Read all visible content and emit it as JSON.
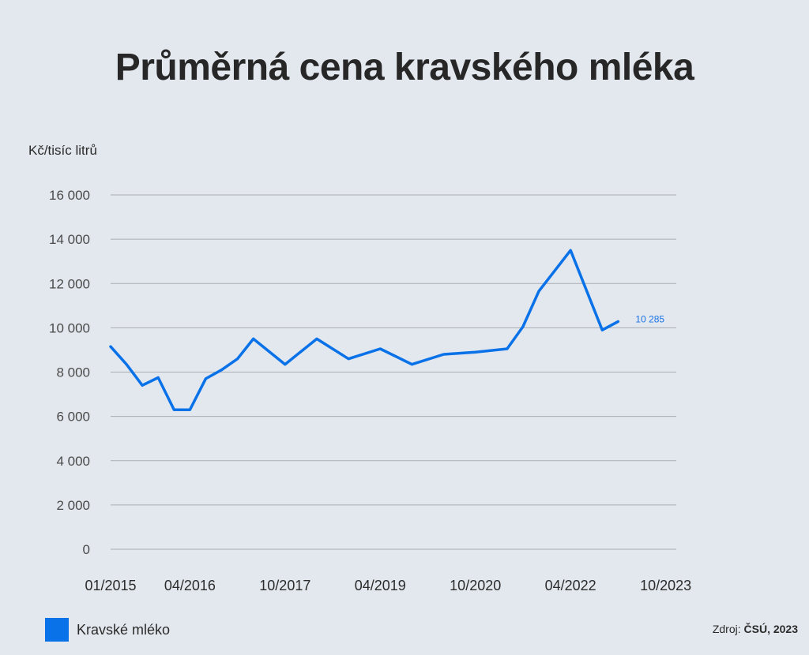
{
  "chart_data": {
    "type": "line",
    "title": "Průměrná cena kravského mléka",
    "ylabel": "Kč/tisíc litrů",
    "xlabel": "",
    "ylim": [
      0,
      16000
    ],
    "y_ticks": [
      0,
      2000,
      4000,
      6000,
      8000,
      10000,
      12000,
      14000,
      16000
    ],
    "y_tick_labels": [
      "0",
      "2 000",
      "4 000",
      "6 000",
      "8 000",
      "10 000",
      "12 000",
      "14 000",
      "16 000"
    ],
    "x_ticks": [
      "01/2015",
      "04/2016",
      "10/2017",
      "04/2019",
      "10/2020",
      "04/2022",
      "10/2023"
    ],
    "x_range": [
      "2015-01",
      "2023-12"
    ],
    "grid": "horizontal",
    "legend_position": "bottom-left",
    "series": [
      {
        "name": "Kravské mléko",
        "color": "#0a72e8",
        "end_label": "10 285",
        "points": [
          [
            "2015-01",
            9150
          ],
          [
            "2015-04",
            8350
          ],
          [
            "2015-07",
            7400
          ],
          [
            "2015-10",
            7750
          ],
          [
            "2016-01",
            6300
          ],
          [
            "2016-04",
            6300
          ],
          [
            "2016-07",
            7700
          ],
          [
            "2016-10",
            8100
          ],
          [
            "2017-01",
            8600
          ],
          [
            "2017-04",
            9500
          ],
          [
            "2017-10",
            8350
          ],
          [
            "2018-04",
            9500
          ],
          [
            "2018-10",
            8600
          ],
          [
            "2019-04",
            9050
          ],
          [
            "2019-10",
            8350
          ],
          [
            "2020-04",
            8800
          ],
          [
            "2020-10",
            8900
          ],
          [
            "2021-04",
            9050
          ],
          [
            "2021-07",
            10050
          ],
          [
            "2021-10",
            11650
          ],
          [
            "2022-04",
            13500
          ],
          [
            "2022-10",
            9900
          ],
          [
            "2023-01",
            10285
          ]
        ]
      }
    ]
  },
  "source": {
    "prefix": "Zdroj:",
    "name": "ČSÚ, 2023"
  }
}
